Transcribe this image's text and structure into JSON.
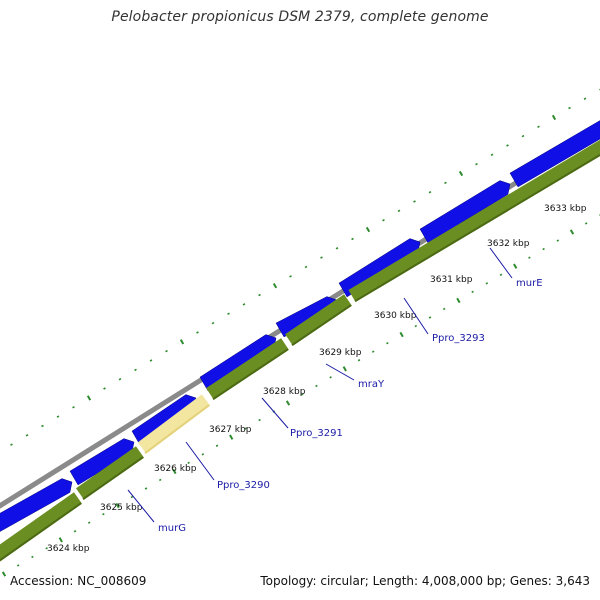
{
  "title": "Pelobacter propionicus DSM 2379, complete genome",
  "accession": "Accession: NC_008609",
  "summary": "Topology: circular; Length: 4,008,000 bp; Genes: 3,643",
  "colors": {
    "backbone": "#8a8a8a",
    "forward_genes": "#1010e6",
    "reverse_genes": "#6b8e23",
    "highlight_gene": "#f3e6a0",
    "ticks": "#2e8b2e",
    "labels": "#1a1aa6"
  },
  "kbp_labels": [
    "3624 kbp",
    "3625 kbp",
    "3626 kbp",
    "3627 kbp",
    "3628 kbp",
    "3629 kbp",
    "3630 kbp",
    "3631 kbp",
    "3632 kbp",
    "3633 kbp"
  ],
  "gene_labels": [
    "murG",
    "Ppro_3290",
    "Ppro_3291",
    "mraY",
    "Ppro_3293",
    "murE"
  ]
}
